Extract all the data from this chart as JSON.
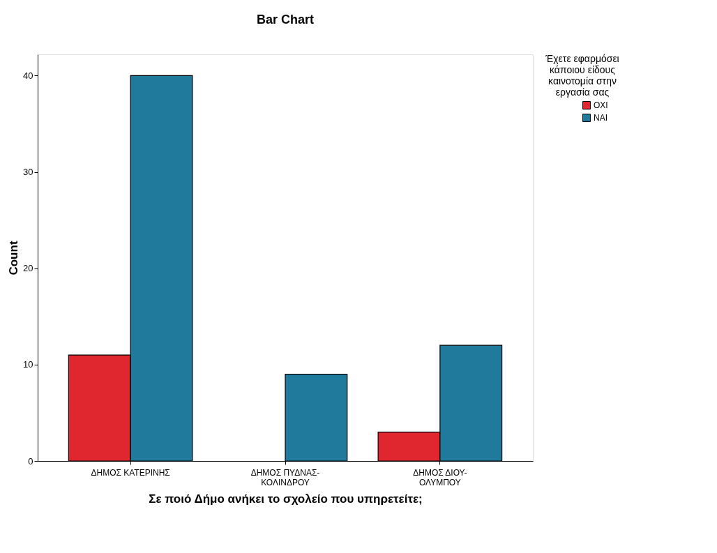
{
  "chart_data": {
    "type": "bar",
    "title": "Bar Chart",
    "xlabel": "Σε ποιό Δήμο ανήκει το σχολείο που υπηρετείτε;",
    "ylabel": "Count",
    "legend_title": "Έχετε εφαρμόσει κάποιου είδους καινοτομία στην εργασία σας",
    "categories": [
      "ΔΗΜΟΣ ΚΑΤΕΡΙΝΗΣ",
      "ΔΗΜΟΣ ΠΥΔΝΑΣ-ΚΟΛΙΝΔΡΟΥ",
      "ΔΗΜΟΣ ΔΙΟΥ-ΟΛΥΜΠΟΥ"
    ],
    "series": [
      {
        "name": "ΟΧΙ",
        "color": "#e0262e",
        "values": [
          11,
          null,
          3
        ]
      },
      {
        "name": "ΝΑΙ",
        "color": "#1f7a9c",
        "values": [
          40,
          9,
          12
        ]
      }
    ],
    "ylim": [
      0,
      42.2
    ],
    "yticks": [
      0,
      10,
      20,
      30,
      40
    ],
    "grid": false,
    "legend": "right"
  }
}
